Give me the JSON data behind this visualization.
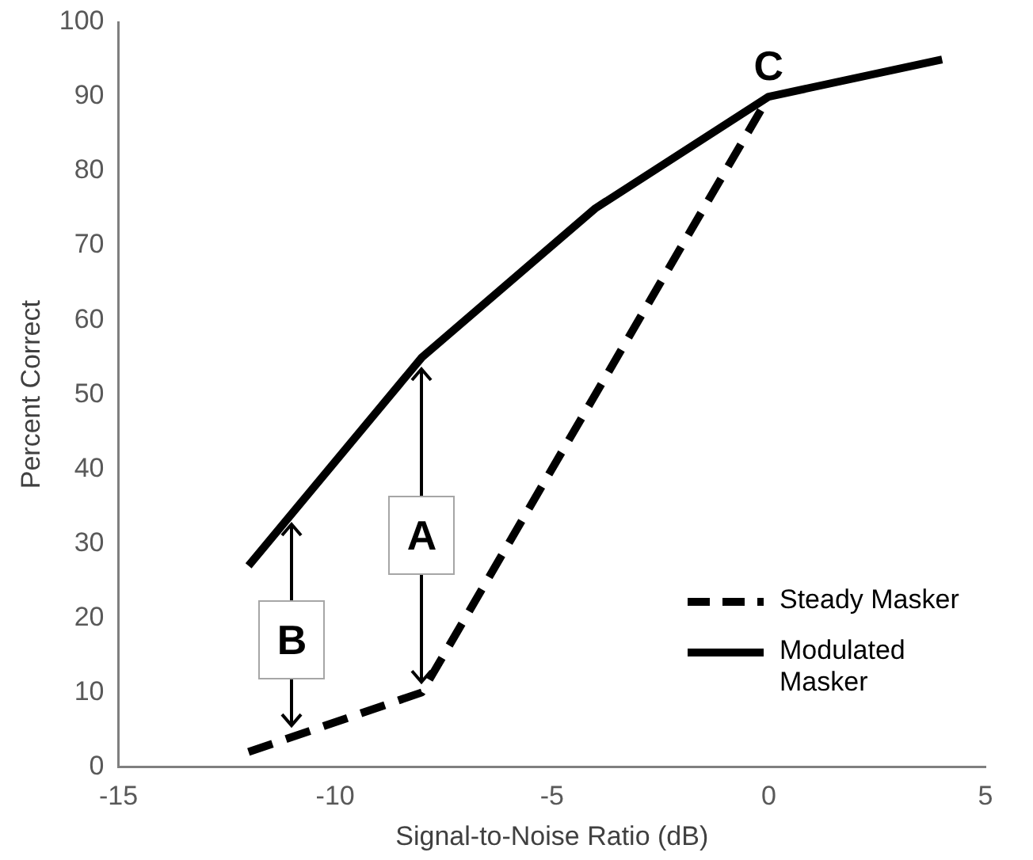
{
  "chart_data": {
    "type": "line",
    "xlabel": "Signal-to-Noise Ratio (dB)",
    "ylabel": "Percent Correct",
    "xlim": [
      -15,
      5
    ],
    "xticks": [
      -15,
      -10,
      -5,
      0,
      5
    ],
    "ylim": [
      0,
      100
    ],
    "yticks": [
      0,
      10,
      20,
      30,
      40,
      50,
      60,
      70,
      80,
      90,
      100
    ],
    "grid": false,
    "legend": "bottom right",
    "marker": "none",
    "series": [
      {
        "name": "Steady Masker",
        "color": "#000000",
        "line_style": "dashed",
        "x": [
          -12,
          -8,
          -4,
          0
        ],
        "values": [
          2,
          10,
          50,
          90
        ]
      },
      {
        "name": "Modulated Masker",
        "color": "#000000",
        "line_style": "solid",
        "x": [
          -12,
          -8,
          -4,
          0,
          4
        ],
        "values": [
          27,
          55,
          75,
          90,
          95
        ]
      }
    ],
    "annotations": [
      "A",
      "B",
      "C"
    ]
  }
}
